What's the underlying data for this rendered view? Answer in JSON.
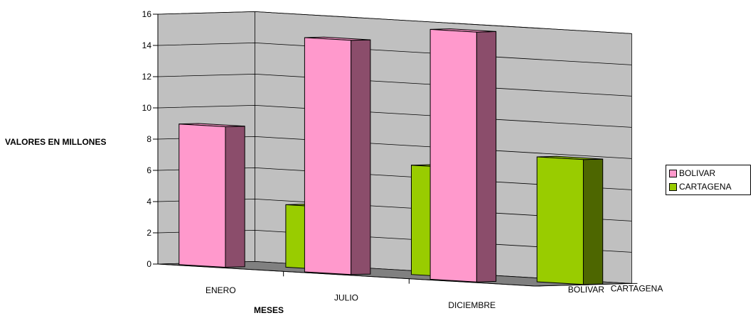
{
  "chart_data": {
    "type": "bar",
    "projection": "3d-clustered-column",
    "categories": [
      "ENERO",
      "JULIO",
      "DICIEMBRE"
    ],
    "series": [
      {
        "name": "BOLIVAR",
        "values": [
          9,
          15,
          16
        ]
      },
      {
        "name": "CARTAGENA",
        "values": [
          4,
          7,
          8
        ]
      }
    ],
    "depth_labels": [
      "BOLIVAR",
      "CARTAGENA"
    ],
    "y_ticks": [
      "0",
      "2",
      "4",
      "6",
      "8",
      "10",
      "12",
      "14",
      "16"
    ],
    "ylim": [
      0,
      16
    ],
    "xlabel": "MESES",
    "ylabel": "VALORES EN MILLONES",
    "grid": true,
    "legend_position": "right",
    "colors": {
      "series": [
        "#ff99cc",
        "#99cc00"
      ],
      "series_side": [
        "#8b4d6b",
        "#4d6600"
      ],
      "wall": "#c0c0c0",
      "floor": "#808080",
      "gridline": "#000000"
    }
  }
}
